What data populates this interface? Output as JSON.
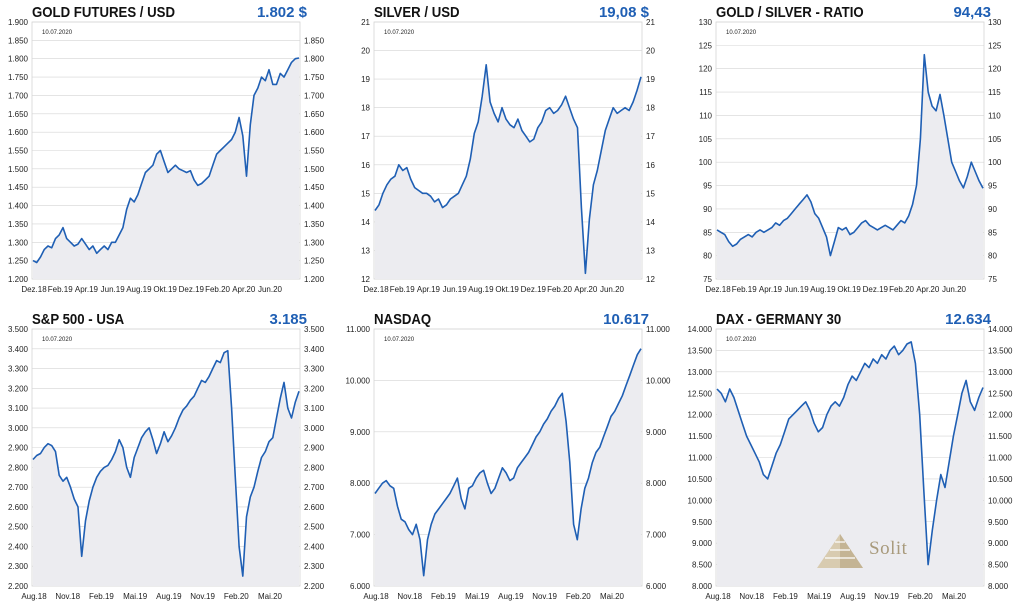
{
  "date_label": "10.07.2020",
  "logo": {
    "text": "Solit"
  },
  "colors": {
    "line": "#1f5fb4",
    "fill": "#ececf0",
    "title": "#111111",
    "value": "#1f5fb4",
    "grid": "#d4d4d4"
  },
  "chart_data": [
    {
      "id": "gold",
      "type": "area",
      "title": "GOLD FUTURES / USD",
      "current_value": "1.802 $",
      "date_label": "10.07.2020",
      "x_ticks": [
        "Dez.18",
        "Feb.19",
        "Apr.19",
        "Jun.19",
        "Aug.19",
        "Okt.19",
        "Dez.19",
        "Feb.20",
        "Apr.20",
        "Jun.20"
      ],
      "y_ticks_left": [
        "1.200",
        "1.250",
        "1.300",
        "1.350",
        "1.400",
        "1.450",
        "1.500",
        "1.550",
        "1.600",
        "1.650",
        "1.700",
        "1.750",
        "1.800",
        "1.850",
        "1.900"
      ],
      "y_ticks_right": [
        "1.200",
        "1.250",
        "1.300",
        "1.350",
        "1.400",
        "1.450",
        "1.500",
        "1.550",
        "1.600",
        "1.650",
        "1.700",
        "1.750",
        "1.800",
        "1.850"
      ],
      "ylim": [
        1200,
        1900
      ],
      "y_ticks_right_max": 1850,
      "series": [
        {
          "values": [
            1250,
            1245,
            1260,
            1280,
            1290,
            1285,
            1310,
            1320,
            1340,
            1310,
            1300,
            1290,
            1295,
            1310,
            1295,
            1280,
            1290,
            1270,
            1280,
            1290,
            1280,
            1300,
            1300,
            1320,
            1340,
            1390,
            1420,
            1410,
            1430,
            1460,
            1490,
            1500,
            1510,
            1540,
            1550,
            1520,
            1490,
            1500,
            1510,
            1500,
            1495,
            1490,
            1495,
            1470,
            1455,
            1460,
            1470,
            1480,
            1510,
            1540,
            1550,
            1560,
            1570,
            1580,
            1600,
            1640,
            1590,
            1480,
            1620,
            1700,
            1720,
            1750,
            1740,
            1770,
            1730,
            1730,
            1760,
            1750,
            1770,
            1790,
            1800,
            1802
          ]
        }
      ]
    },
    {
      "id": "silver",
      "type": "area",
      "title": "SILVER / USD",
      "current_value": "19,08 $",
      "date_label": "10.07.2020",
      "x_ticks": [
        "Dez.18",
        "Feb.19",
        "Apr.19",
        "Jun.19",
        "Aug.19",
        "Okt.19",
        "Dez.19",
        "Feb.20",
        "Apr.20",
        "Jun.20"
      ],
      "y_ticks_left": [
        "12",
        "13",
        "14",
        "15",
        "16",
        "17",
        "18",
        "19",
        "20",
        "21"
      ],
      "y_ticks_right": [
        "12",
        "13",
        "14",
        "15",
        "16",
        "17",
        "18",
        "19",
        "20",
        "21"
      ],
      "ylim": [
        12,
        21
      ],
      "series": [
        {
          "values": [
            14.4,
            14.6,
            15.0,
            15.3,
            15.5,
            15.6,
            16.0,
            15.8,
            15.9,
            15.5,
            15.2,
            15.1,
            15.0,
            15.0,
            14.9,
            14.7,
            14.8,
            14.5,
            14.6,
            14.8,
            14.9,
            15.0,
            15.3,
            15.6,
            16.2,
            17.1,
            17.5,
            18.4,
            19.5,
            18.2,
            17.8,
            17.5,
            18.0,
            17.6,
            17.4,
            17.3,
            17.6,
            17.2,
            17.0,
            16.8,
            16.9,
            17.3,
            17.5,
            17.9,
            18.0,
            17.8,
            17.9,
            18.1,
            18.4,
            18.0,
            17.6,
            17.3,
            14.5,
            12.2,
            14.1,
            15.3,
            15.8,
            16.5,
            17.2,
            17.6,
            18.0,
            17.8,
            17.9,
            18.0,
            17.9,
            18.2,
            18.6,
            19.08
          ]
        }
      ]
    },
    {
      "id": "ratio",
      "type": "area",
      "title": "GOLD / SILVER - RATIO",
      "current_value": "94,43",
      "date_label": "10.07.2020",
      "x_ticks": [
        "Dez.18",
        "Feb.19",
        "Apr.19",
        "Jun.19",
        "Aug.19",
        "Okt.19",
        "Dez.19",
        "Feb.20",
        "Apr.20",
        "Jun.20"
      ],
      "y_ticks_left": [
        "75",
        "80",
        "85",
        "90",
        "95",
        "100",
        "105",
        "110",
        "115",
        "120",
        "125",
        "130"
      ],
      "y_ticks_right": [
        "75",
        "80",
        "85",
        "90",
        "95",
        "100",
        "105",
        "110",
        "115",
        "120",
        "125",
        "130"
      ],
      "ylim": [
        75,
        130
      ],
      "series": [
        {
          "values": [
            85.5,
            85.0,
            84.5,
            83.0,
            82.0,
            82.5,
            83.5,
            84.0,
            84.5,
            84.0,
            85.0,
            85.5,
            85.0,
            85.5,
            86.0,
            87.0,
            86.5,
            87.5,
            88.0,
            89.0,
            90.0,
            91.0,
            92.0,
            93.0,
            91.5,
            89.0,
            88.0,
            86.0,
            84.0,
            80.0,
            83.0,
            86.0,
            85.5,
            86.0,
            84.5,
            85.0,
            86.0,
            87.0,
            87.5,
            86.5,
            86.0,
            85.5,
            86.0,
            86.5,
            86.0,
            85.5,
            86.5,
            87.5,
            87.0,
            88.5,
            91.0,
            95.0,
            105.0,
            123.0,
            115.0,
            112.0,
            111.0,
            114.5,
            110.0,
            105.0,
            100.0,
            98.0,
            96.0,
            94.5,
            97.0,
            100.0,
            98.0,
            96.0,
            94.43
          ]
        }
      ]
    },
    {
      "id": "sp500",
      "type": "area",
      "title": "S&P 500 - USA",
      "current_value": "3.185",
      "date_label": "10.07.2020",
      "x_ticks": [
        "Aug.18",
        "Nov.18",
        "Feb.19",
        "Mai.19",
        "Aug.19",
        "Nov.19",
        "Feb.20",
        "Mai.20"
      ],
      "y_ticks_left": [
        "2.200",
        "2.300",
        "2.400",
        "2.500",
        "2.600",
        "2.700",
        "2.800",
        "2.900",
        "3.000",
        "3.100",
        "3.200",
        "3.300",
        "3.400",
        "3.500"
      ],
      "y_ticks_right": [
        "2.200",
        "2.300",
        "2.400",
        "2.500",
        "2.600",
        "2.700",
        "2.800",
        "2.900",
        "3.000",
        "3.100",
        "3.200",
        "3.300",
        "3.400",
        "3.500"
      ],
      "ylim": [
        2200,
        3500
      ],
      "series": [
        {
          "values": [
            2840,
            2860,
            2870,
            2900,
            2920,
            2910,
            2880,
            2760,
            2730,
            2750,
            2700,
            2640,
            2600,
            2350,
            2530,
            2630,
            2700,
            2750,
            2780,
            2800,
            2810,
            2840,
            2880,
            2940,
            2900,
            2800,
            2750,
            2850,
            2900,
            2950,
            2980,
            3000,
            2940,
            2870,
            2920,
            2980,
            2930,
            2960,
            3000,
            3050,
            3090,
            3110,
            3140,
            3160,
            3200,
            3240,
            3230,
            3260,
            3300,
            3340,
            3330,
            3380,
            3390,
            3100,
            2750,
            2400,
            2250,
            2550,
            2650,
            2700,
            2780,
            2850,
            2880,
            2930,
            2950,
            3050,
            3150,
            3230,
            3100,
            3050,
            3130,
            3185
          ]
        }
      ]
    },
    {
      "id": "nasdaq",
      "type": "area",
      "title": "NASDAQ",
      "current_value": "10.617",
      "date_label": "10.07.2020",
      "x_ticks": [
        "Aug.18",
        "Nov.18",
        "Feb.19",
        "Mai.19",
        "Aug.19",
        "Nov.19",
        "Feb.20",
        "Mai.20"
      ],
      "y_ticks_left": [
        "6.000",
        "7.000",
        "8.000",
        "9.000",
        "10.000",
        "11.000"
      ],
      "y_ticks_right": [
        "6.000",
        "7.000",
        "8.000",
        "9.000",
        "10.000",
        "11.000"
      ],
      "ylim": [
        6000,
        11000
      ],
      "series": [
        {
          "values": [
            7800,
            7900,
            8000,
            8050,
            7950,
            7900,
            7550,
            7300,
            7250,
            7100,
            7000,
            7200,
            6900,
            6200,
            6900,
            7200,
            7400,
            7500,
            7600,
            7700,
            7800,
            7950,
            8100,
            7700,
            7500,
            7900,
            7950,
            8100,
            8200,
            8250,
            8000,
            7800,
            7900,
            8100,
            8300,
            8200,
            8050,
            8100,
            8300,
            8400,
            8500,
            8600,
            8750,
            8900,
            9000,
            9150,
            9250,
            9400,
            9500,
            9650,
            9750,
            9200,
            8400,
            7200,
            6900,
            7500,
            7900,
            8100,
            8400,
            8600,
            8700,
            8900,
            9100,
            9300,
            9400,
            9550,
            9700,
            9900,
            10100,
            10300,
            10500,
            10617
          ]
        }
      ]
    },
    {
      "id": "dax",
      "type": "area",
      "title": "DAX - GERMANY 30",
      "current_value": "12.634",
      "date_label": "10.07.2020",
      "x_ticks": [
        "Aug.18",
        "Nov.18",
        "Feb.19",
        "Mai.19",
        "Aug.19",
        "Nov.19",
        "Feb.20",
        "Mai.20"
      ],
      "y_ticks_left": [
        "8.000",
        "8.500",
        "9.000",
        "9.500",
        "10.000",
        "10.500",
        "11.000",
        "11.500",
        "12.000",
        "12.500",
        "13.000",
        "13.500",
        "14.000"
      ],
      "y_ticks_right": [
        "8.000",
        "8.500",
        "9.000",
        "9.500",
        "10.000",
        "10.500",
        "11.000",
        "11.500",
        "12.000",
        "12.500",
        "13.000",
        "13.500",
        "14.000"
      ],
      "ylim": [
        8000,
        14000
      ],
      "series": [
        {
          "values": [
            12600,
            12500,
            12300,
            12600,
            12400,
            12100,
            11800,
            11500,
            11300,
            11100,
            10900,
            10600,
            10500,
            10800,
            11100,
            11300,
            11600,
            11900,
            12000,
            12100,
            12200,
            12300,
            12100,
            11800,
            11600,
            11700,
            12000,
            12200,
            12300,
            12200,
            12400,
            12700,
            12900,
            12800,
            13000,
            13200,
            13100,
            13300,
            13200,
            13400,
            13300,
            13500,
            13600,
            13400,
            13500,
            13650,
            13700,
            13200,
            12000,
            10200,
            8500,
            9300,
            10000,
            10600,
            10300,
            10900,
            11500,
            12000,
            12500,
            12800,
            12300,
            12100,
            12400,
            12634
          ]
        }
      ]
    }
  ]
}
